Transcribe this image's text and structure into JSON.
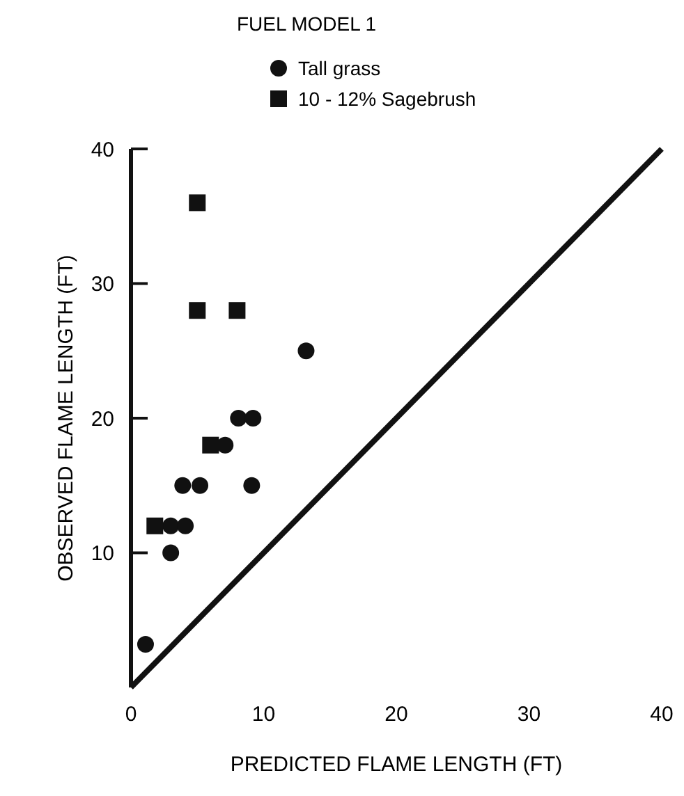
{
  "chart_data": {
    "type": "scatter",
    "title": "FUEL MODEL 1",
    "xlabel": "PREDICTED FLAME LENGTH (FT)",
    "ylabel": "OBSERVED FLAME LENGTH (FT)",
    "xlim": [
      0,
      40
    ],
    "ylim": [
      0,
      40
    ],
    "xticks": [
      0,
      10,
      20,
      30,
      40
    ],
    "yticks": [
      10,
      20,
      30,
      40
    ],
    "legend": "top",
    "grid": false,
    "series": [
      {
        "name": "Tall grass",
        "color": "#111111",
        "marker": "circle",
        "x": [
          1.1,
          3.0,
          3.0,
          4.1,
          3.9,
          5.2,
          7.1,
          8.1,
          9.2,
          9.1,
          13.2
        ],
        "values": [
          3.2,
          10,
          12,
          12,
          15,
          15,
          18,
          20,
          20,
          15,
          25
        ]
      },
      {
        "name": "10 - 12% Sagebrush",
        "color": "#111111",
        "marker": "square",
        "x": [
          5.0,
          5.0,
          8.0,
          6.0,
          1.8
        ],
        "values": [
          36,
          28,
          28,
          18,
          12
        ]
      },
      {
        "type": "line",
        "color": "#111111",
        "marker": "none",
        "x": [
          0,
          40
        ],
        "values": [
          0,
          40
        ]
      }
    ]
  }
}
